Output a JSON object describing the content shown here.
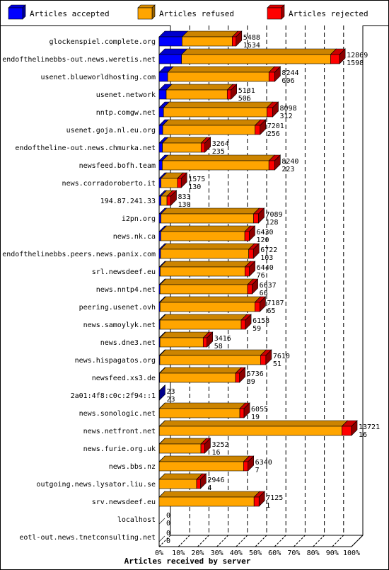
{
  "chart_data": {
    "type": "bar",
    "orientation": "horizontal",
    "stacked": true,
    "xlabel": "Articles received by server",
    "x_ticks": [
      "0%",
      "10%",
      "20%",
      "30%",
      "40%",
      "50%",
      "60%",
      "70%",
      "80%",
      "90%",
      "100%"
    ],
    "xlim": [
      0,
      100
    ],
    "legend_position": "top",
    "series": [
      {
        "name": "Articles accepted",
        "color": "#0000ff"
      },
      {
        "name": "Articles refused",
        "color": "#ffa500"
      },
      {
        "name": "Articles rejected",
        "color": "#ff0000"
      }
    ],
    "rows": [
      {
        "server": "glockenspiel.complete.org",
        "total": "5488",
        "accepted": "1634"
      },
      {
        "server": "endofthelinebbs-out.news.weretis.net",
        "total": "12869",
        "accepted": "1598"
      },
      {
        "server": "usenet.blueworldhosting.com",
        "total": "8244",
        "accepted": "606"
      },
      {
        "server": "usenet.network",
        "total": "5131",
        "accepted": "506"
      },
      {
        "server": "nntp.comgw.net",
        "total": "8098",
        "accepted": "312"
      },
      {
        "server": "usenet.goja.nl.eu.org",
        "total": "7201",
        "accepted": "256"
      },
      {
        "server": "endoftheline-out.news.chmurka.net",
        "total": "3264",
        "accepted": "235"
      },
      {
        "server": "newsfeed.bofh.team",
        "total": "8240",
        "accepted": "223"
      },
      {
        "server": "news.corradoroberto.it",
        "total": "1575",
        "accepted": "130"
      },
      {
        "server": "194.87.241.33",
        "total": "833",
        "accepted": "130"
      },
      {
        "server": "i2pn.org",
        "total": "7089",
        "accepted": "128"
      },
      {
        "server": "news.nk.ca",
        "total": "6430",
        "accepted": "120"
      },
      {
        "server": "endofthelinebbs.peers.news.panix.com",
        "total": "6722",
        "accepted": "103"
      },
      {
        "server": "srl.newsdeef.eu",
        "total": "6440",
        "accepted": "76"
      },
      {
        "server": "news.nntp4.net",
        "total": "6637",
        "accepted": "66"
      },
      {
        "server": "peering.usenet.ovh",
        "total": "7187",
        "accepted": "65"
      },
      {
        "server": "news.samoylyk.net",
        "total": "6158",
        "accepted": "59"
      },
      {
        "server": "news.dne3.net",
        "total": "3416",
        "accepted": "58"
      },
      {
        "server": "news.hispagatos.org",
        "total": "7610",
        "accepted": "51"
      },
      {
        "server": "newsfeed.xs3.de",
        "total": "5736",
        "accepted": "39"
      },
      {
        "server": "2a01:4f8:c0c:2f94::1",
        "total": "23",
        "accepted": "23"
      },
      {
        "server": "news.sonologic.net",
        "total": "6055",
        "accepted": "19"
      },
      {
        "server": "news.netfront.net",
        "total": "13721",
        "accepted": "16"
      },
      {
        "server": "news.furie.org.uk",
        "total": "3252",
        "accepted": "16"
      },
      {
        "server": "news.bbs.nz",
        "total": "6340",
        "accepted": "7"
      },
      {
        "server": "outgoing.news.lysator.liu.se",
        "total": "2946",
        "accepted": "4"
      },
      {
        "server": "srv.newsdeef.eu",
        "total": "7125",
        "accepted": "1"
      },
      {
        "server": "localhost",
        "total": "0",
        "accepted": "0"
      },
      {
        "server": "eotl-out.news.tnetconsulting.net",
        "total": "0",
        "accepted": "0"
      }
    ]
  }
}
